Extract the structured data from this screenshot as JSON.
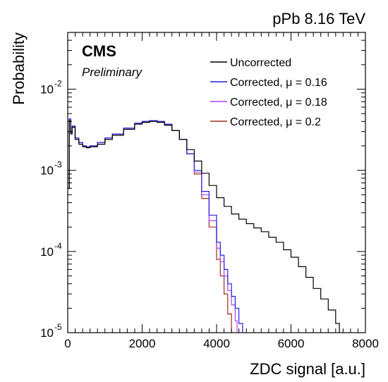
{
  "chart_data": {
    "type": "line",
    "header_text": "pPb 8.16 TeV",
    "experiment": "CMS",
    "status": "Preliminary",
    "xlabel": "ZDC signal [a.u.]",
    "ylabel": "Probability",
    "xlim": [
      0,
      8000
    ],
    "ylim": [
      1e-05,
      0.05
    ],
    "yscale": "log",
    "grid": false,
    "legend_position": "top-right",
    "x_ticks": [
      {
        "value": 0,
        "label": "0"
      },
      {
        "value": 2000,
        "label": "2000"
      },
      {
        "value": 4000,
        "label": "4000"
      },
      {
        "value": 6000,
        "label": "6000"
      },
      {
        "value": 8000,
        "label": "8000"
      }
    ],
    "y_ticks": [
      {
        "value": 1e-05,
        "base": "10",
        "exp": "-5"
      },
      {
        "value": 0.0001,
        "base": "10",
        "exp": "-4"
      },
      {
        "value": 0.001,
        "base": "10",
        "exp": "-3"
      },
      {
        "value": 0.01,
        "base": "10",
        "exp": "-2"
      }
    ],
    "series": [
      {
        "name": "Uncorrected",
        "color": "#000000",
        "x": [
          0,
          40,
          80,
          120,
          200,
          300,
          400,
          500,
          600,
          800,
          1000,
          1200,
          1500,
          1800,
          2000,
          2200,
          2400,
          2600,
          2800,
          3000,
          3200,
          3400,
          3600,
          3800,
          4000,
          4200,
          4400,
          4600,
          4800,
          5000,
          5200,
          5400,
          5600,
          5800,
          6000,
          6200,
          6400,
          6600,
          6800,
          7000,
          7200,
          7300
        ],
        "y": [
          0.0006,
          0.0041,
          0.0028,
          0.0034,
          0.0024,
          0.0021,
          0.00195,
          0.0019,
          0.00195,
          0.0021,
          0.0024,
          0.0027,
          0.0032,
          0.0037,
          0.0039,
          0.004,
          0.0039,
          0.0036,
          0.0031,
          0.0024,
          0.0018,
          0.0013,
          0.00092,
          0.00065,
          0.00046,
          0.00036,
          0.00029,
          0.00025,
          0.00022,
          0.000195,
          0.000175,
          0.00015,
          0.00013,
          0.000105,
          8.5e-05,
          6.5e-05,
          4.8e-05,
          3.5e-05,
          2.6e-05,
          1.9e-05,
          1.3e-05,
          1e-05
        ]
      },
      {
        "name": "Corrected, μ = 0.16",
        "color": "#2020e0",
        "x": [
          0,
          40,
          80,
          120,
          200,
          300,
          400,
          500,
          600,
          800,
          1000,
          1200,
          1500,
          1800,
          2000,
          2200,
          2400,
          2600,
          2800,
          3000,
          3200,
          3400,
          3600,
          3800,
          4000,
          4100,
          4200,
          4300,
          4400,
          4500,
          4600,
          4700
        ],
        "y": [
          0.0006,
          0.0043,
          0.0029,
          0.0035,
          0.0025,
          0.0022,
          0.002,
          0.00195,
          0.002,
          0.0022,
          0.0025,
          0.0028,
          0.0033,
          0.0038,
          0.004,
          0.0041,
          0.004,
          0.0037,
          0.0031,
          0.0024,
          0.0016,
          0.001,
          0.00055,
          0.00028,
          0.00013,
          9e-05,
          6e-05,
          4e-05,
          2.8e-05,
          2e-05,
          1.3e-05,
          1e-05
        ]
      },
      {
        "name": "Corrected, μ = 0.18",
        "color": "#b040f0",
        "x": [
          0,
          40,
          80,
          120,
          200,
          300,
          400,
          500,
          600,
          800,
          1000,
          1200,
          1500,
          1800,
          2000,
          2200,
          2400,
          2600,
          2800,
          3000,
          3200,
          3400,
          3600,
          3800,
          4000,
          4100,
          4200,
          4300,
          4400,
          4500,
          4550
        ],
        "y": [
          0.0006,
          0.0043,
          0.0029,
          0.0035,
          0.0025,
          0.0022,
          0.002,
          0.00195,
          0.002,
          0.0022,
          0.0025,
          0.0028,
          0.0033,
          0.0038,
          0.004,
          0.0041,
          0.004,
          0.0037,
          0.0031,
          0.0024,
          0.0016,
          0.00095,
          0.0005,
          0.00024,
          0.00011,
          7.5e-05,
          5e-05,
          3.3e-05,
          2.2e-05,
          1.4e-05,
          1e-05
        ]
      },
      {
        "name": "Corrected, μ = 0.2",
        "color": "#9b3018",
        "x": [
          0,
          40,
          80,
          120,
          200,
          300,
          400,
          500,
          600,
          800,
          1000,
          1200,
          1500,
          1800,
          2000,
          2200,
          2400,
          2600,
          2800,
          3000,
          3200,
          3400,
          3600,
          3800,
          4000,
          4100,
          4200,
          4300,
          4400
        ],
        "y": [
          0.0006,
          0.0043,
          0.0029,
          0.0035,
          0.0025,
          0.0022,
          0.002,
          0.00195,
          0.002,
          0.0022,
          0.0025,
          0.0028,
          0.0033,
          0.0038,
          0.004,
          0.0041,
          0.004,
          0.0037,
          0.0031,
          0.0024,
          0.0016,
          0.0009,
          0.00045,
          0.0002,
          8e-05,
          5e-05,
          3e-05,
          1.7e-05,
          1e-05
        ]
      }
    ]
  }
}
